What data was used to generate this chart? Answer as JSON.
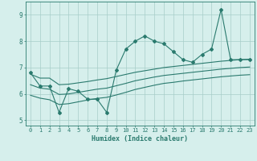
{
  "xlabel": "Humidex (Indice chaleur)",
  "background_color": "#d6efec",
  "line_color": "#2a7a6e",
  "grid_color": "#a8cdc9",
  "x": [
    0,
    1,
    2,
    3,
    4,
    5,
    6,
    7,
    8,
    9,
    10,
    11,
    12,
    13,
    14,
    15,
    16,
    17,
    18,
    19,
    20,
    21,
    22,
    23
  ],
  "y_main": [
    6.8,
    6.3,
    6.3,
    5.3,
    6.2,
    6.1,
    5.8,
    5.8,
    5.3,
    6.9,
    7.7,
    8.0,
    8.2,
    8.0,
    7.9,
    7.6,
    7.3,
    7.2,
    7.5,
    7.7,
    9.2,
    7.3,
    7.3,
    7.3
  ],
  "y_upper": [
    6.75,
    6.6,
    6.6,
    6.35,
    6.37,
    6.42,
    6.47,
    6.53,
    6.58,
    6.66,
    6.74,
    6.82,
    6.88,
    6.94,
    7.0,
    7.04,
    7.08,
    7.12,
    7.16,
    7.2,
    7.24,
    7.27,
    7.3,
    7.32
  ],
  "y_middle": [
    6.35,
    6.22,
    6.18,
    5.98,
    6.0,
    6.06,
    6.12,
    6.18,
    6.22,
    6.31,
    6.4,
    6.5,
    6.57,
    6.64,
    6.7,
    6.74,
    6.78,
    6.82,
    6.86,
    6.9,
    6.94,
    6.97,
    7.0,
    7.02
  ],
  "y_lower": [
    5.95,
    5.84,
    5.78,
    5.6,
    5.63,
    5.7,
    5.77,
    5.83,
    5.87,
    5.96,
    6.06,
    6.17,
    6.25,
    6.33,
    6.4,
    6.44,
    6.49,
    6.53,
    6.57,
    6.61,
    6.65,
    6.68,
    6.71,
    6.73
  ],
  "ylim": [
    4.8,
    9.5
  ],
  "yticks": [
    5,
    6,
    7,
    8,
    9
  ],
  "xticks": [
    0,
    1,
    2,
    3,
    4,
    5,
    6,
    7,
    8,
    9,
    10,
    11,
    12,
    13,
    14,
    15,
    16,
    17,
    18,
    19,
    20,
    21,
    22,
    23
  ],
  "tick_fontsize": 5,
  "xlabel_fontsize": 6
}
